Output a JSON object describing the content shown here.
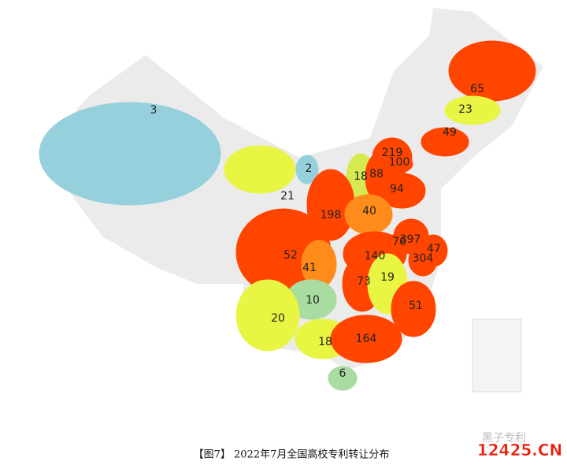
{
  "chart_data": {
    "type": "map",
    "title": "【图7】 2022年7月全国高校专利转让分布",
    "values": [
      3,
      65,
      23,
      49,
      219,
      100,
      2,
      18,
      88,
      94,
      21,
      198,
      40,
      397,
      76,
      47,
      52,
      140,
      304,
      41,
      73,
      19,
      10,
      51,
      20,
      18,
      164,
      6
    ],
    "colors": [
      "#96d0dc",
      "#ff4500",
      "#e8f542",
      "#ff4500",
      "#ff4500",
      "#ff4500",
      "#96d0dc",
      "#d4ea50",
      "#ff4500",
      "#ff4500",
      "#e8f542",
      "#ff4500",
      "#ff8c1a",
      "#ff4500",
      "#ff4500",
      "#ff4500",
      "#ff4500",
      "#ff4500",
      "#ff4500",
      "#ff8c1a",
      "#ff4500",
      "#e8f542",
      "#a8dca0",
      "#ff4500",
      "#e8f542",
      "#e8f542",
      "#ff4500",
      "#a8dca0"
    ],
    "watermarks": [
      "黑子专利",
      "12425.CN"
    ]
  }
}
